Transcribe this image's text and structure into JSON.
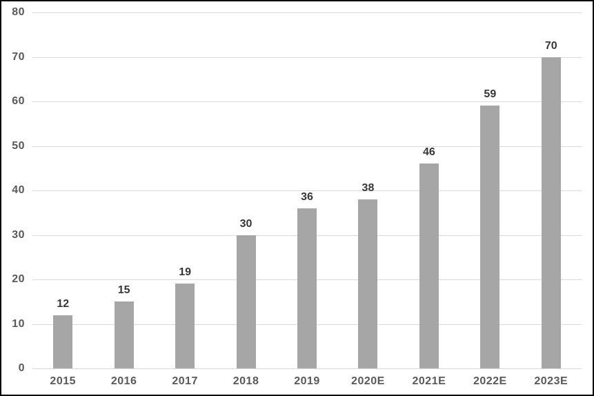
{
  "chart_data": {
    "type": "bar",
    "categories": [
      "2015",
      "2016",
      "2017",
      "2018",
      "2019",
      "2020E",
      "2021E",
      "2022E",
      "2023E"
    ],
    "values": [
      12,
      15,
      19,
      30,
      36,
      38,
      46,
      59,
      70
    ],
    "title": "",
    "xlabel": "",
    "ylabel": "",
    "ylim": [
      0,
      80
    ],
    "ytick_interval": 10,
    "ytick_labels": [
      "0",
      "10",
      "20",
      "30",
      "40",
      "50",
      "60",
      "70",
      "80"
    ],
    "grid": true,
    "legend": "none",
    "data_labels": true,
    "colors": {
      "bar": "#a6a6a6",
      "gridline": "#d9d9d9",
      "value_label": "#363636",
      "tick_label": "#595959",
      "frame_border": "#000000",
      "background": "#ffffff"
    }
  }
}
